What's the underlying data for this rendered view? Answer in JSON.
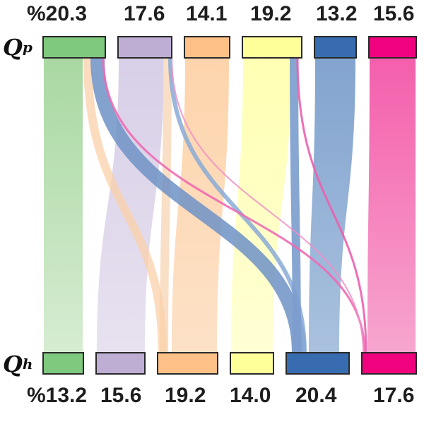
{
  "top_row": {
    "label_main": "Q",
    "label_sup": "p",
    "values": [
      "%20.3",
      "17.6",
      "14.1",
      "19.2",
      "13.2",
      "15.6"
    ],
    "colors": [
      "#7fc97f",
      "#beaed4",
      "#fdc086",
      "#ffff99",
      "#386cb0",
      "#f0027f"
    ]
  },
  "bottom_row": {
    "label_main": "Q",
    "label_sup": "h",
    "values": [
      "%13.2",
      "15.6",
      "19.2",
      "14.0",
      "20.4",
      "17.6"
    ],
    "colors": [
      "#7fc97f",
      "#beaed4",
      "#fdc086",
      "#ffff99",
      "#386cb0",
      "#f0027f"
    ]
  }
}
